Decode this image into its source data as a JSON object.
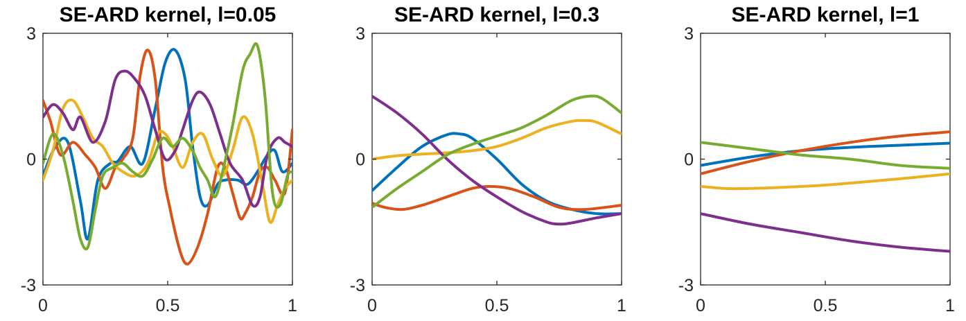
{
  "chart_data": [
    {
      "type": "line",
      "title": "SE-ARD kernel, l=0.05",
      "xlabel": "",
      "ylabel": "",
      "xlim": [
        0,
        1
      ],
      "ylim": [
        -3,
        3
      ],
      "xticks": [
        "0",
        "0.5",
        "1"
      ],
      "yticks": [
        "-3",
        "0",
        "3"
      ],
      "grid": false,
      "series": [
        {
          "color": "#0072BD",
          "x": [
            0,
            0.05,
            0.1,
            0.15,
            0.18,
            0.22,
            0.27,
            0.3,
            0.35,
            0.4,
            0.45,
            0.49,
            0.53,
            0.57,
            0.6,
            0.63,
            0.66,
            0.7,
            0.73,
            0.78,
            0.82,
            0.86,
            0.9,
            0.93,
            0.96,
            1
          ],
          "y": [
            -0.4,
            0.3,
            0.4,
            -1.0,
            -1.9,
            -0.5,
            -0.1,
            -0.05,
            0.3,
            -0.1,
            1.2,
            2.3,
            2.6,
            1.9,
            0.3,
            -0.9,
            -1.1,
            -0.6,
            -0.5,
            -0.5,
            -0.6,
            -0.3,
            0.1,
            0.2,
            -0.3,
            -0.1
          ]
        },
        {
          "color": "#D95319",
          "x": [
            0,
            0.03,
            0.07,
            0.12,
            0.17,
            0.21,
            0.25,
            0.29,
            0.32,
            0.36,
            0.39,
            0.42,
            0.45,
            0.48,
            0.51,
            0.55,
            0.58,
            0.62,
            0.66,
            0.7,
            0.73,
            0.76,
            0.79,
            0.81,
            0.84,
            0.87,
            0.9,
            0.93,
            0.97,
            1
          ],
          "y": [
            1.4,
            0.9,
            0.1,
            0.4,
            0.1,
            -0.2,
            -0.7,
            -0.2,
            0.0,
            0.5,
            2.0,
            2.6,
            1.9,
            -0.2,
            -1.2,
            -2.2,
            -2.5,
            -2.1,
            -1.3,
            -0.2,
            -0.2,
            -0.8,
            -1.4,
            -1.3,
            -0.9,
            -0.3,
            -0.2,
            -0.5,
            -0.8,
            0.7
          ]
        },
        {
          "color": "#EDB120",
          "x": [
            0,
            0.04,
            0.08,
            0.12,
            0.16,
            0.2,
            0.24,
            0.28,
            0.32,
            0.37,
            0.42,
            0.46,
            0.49,
            0.52,
            0.56,
            0.6,
            0.64,
            0.68,
            0.72,
            0.76,
            0.8,
            0.84,
            0.88,
            0.91,
            0.94,
            0.97,
            1
          ],
          "y": [
            -0.5,
            0.2,
            1.2,
            1.4,
            1.0,
            0.5,
            0.3,
            -0.1,
            -0.3,
            -0.4,
            -0.1,
            0.6,
            0.6,
            0.3,
            -0.2,
            0.4,
            0.6,
            0.0,
            -0.4,
            0.2,
            1.0,
            0.6,
            -0.6,
            -1.5,
            -1.1,
            -0.7,
            -0.5
          ]
        },
        {
          "color": "#7E2F8E",
          "x": [
            0,
            0.04,
            0.08,
            0.12,
            0.15,
            0.2,
            0.25,
            0.29,
            0.33,
            0.37,
            0.41,
            0.45,
            0.49,
            0.53,
            0.56,
            0.6,
            0.63,
            0.67,
            0.71,
            0.75,
            0.8,
            0.84,
            0.87,
            0.9,
            0.94,
            0.97,
            1
          ],
          "y": [
            1.0,
            1.3,
            1.1,
            0.7,
            1.0,
            0.4,
            0.9,
            1.9,
            2.1,
            1.9,
            1.5,
            0.7,
            0.0,
            0.2,
            0.7,
            1.4,
            1.6,
            1.3,
            0.6,
            -0.1,
            -0.5,
            -1.1,
            -0.9,
            0.1,
            0.5,
            0.4,
            0.3
          ]
        },
        {
          "color": "#77AC30",
          "x": [
            0,
            0.04,
            0.08,
            0.12,
            0.15,
            0.18,
            0.21,
            0.24,
            0.28,
            0.32,
            0.36,
            0.4,
            0.44,
            0.48,
            0.52,
            0.56,
            0.6,
            0.63,
            0.66,
            0.69,
            0.72,
            0.76,
            0.8,
            0.83,
            0.86,
            0.89,
            0.92,
            0.95,
            0.98,
            1
          ],
          "y": [
            -0.1,
            0.6,
            0.1,
            -1.0,
            -1.9,
            -2.1,
            -1.2,
            -0.4,
            -0.2,
            -0.1,
            -0.3,
            -0.4,
            0.0,
            0.5,
            0.3,
            0.5,
            0.2,
            -0.2,
            -0.5,
            -0.9,
            -0.3,
            0.8,
            2.1,
            2.5,
            2.7,
            1.5,
            -0.8,
            -1.1,
            -0.4,
            -0.3
          ]
        }
      ]
    },
    {
      "type": "line",
      "title": "SE-ARD kernel, l=0.3",
      "xlabel": "",
      "ylabel": "",
      "xlim": [
        0,
        1
      ],
      "ylim": [
        -3,
        3
      ],
      "xticks": [
        "0",
        "0.5",
        "1"
      ],
      "yticks": [
        "-3",
        "0",
        "3"
      ],
      "grid": false,
      "series": [
        {
          "color": "#0072BD",
          "x": [
            0,
            0.1,
            0.2,
            0.3,
            0.35,
            0.4,
            0.5,
            0.6,
            0.7,
            0.8,
            0.9,
            1
          ],
          "y": [
            -0.75,
            -0.2,
            0.3,
            0.58,
            0.6,
            0.5,
            0.0,
            -0.6,
            -1.0,
            -1.2,
            -1.3,
            -1.3
          ]
        },
        {
          "color": "#D95319",
          "x": [
            0,
            0.05,
            0.12,
            0.2,
            0.3,
            0.4,
            0.47,
            0.55,
            0.65,
            0.75,
            0.85,
            1
          ],
          "y": [
            -1.05,
            -1.15,
            -1.2,
            -1.1,
            -0.9,
            -0.7,
            -0.65,
            -0.7,
            -0.9,
            -1.15,
            -1.2,
            -1.1
          ]
        },
        {
          "color": "#EDB120",
          "x": [
            0,
            0.1,
            0.2,
            0.3,
            0.4,
            0.5,
            0.6,
            0.7,
            0.8,
            0.85,
            0.9,
            1
          ],
          "y": [
            0.0,
            0.08,
            0.12,
            0.15,
            0.2,
            0.3,
            0.5,
            0.75,
            0.9,
            0.92,
            0.88,
            0.6
          ]
        },
        {
          "color": "#7E2F8E",
          "x": [
            0,
            0.1,
            0.2,
            0.3,
            0.4,
            0.5,
            0.6,
            0.7,
            0.75,
            0.8,
            0.9,
            1
          ],
          "y": [
            1.5,
            1.1,
            0.6,
            0.0,
            -0.5,
            -0.9,
            -1.25,
            -1.5,
            -1.55,
            -1.52,
            -1.4,
            -1.3
          ]
        },
        {
          "color": "#77AC30",
          "x": [
            0,
            0.1,
            0.2,
            0.3,
            0.4,
            0.5,
            0.6,
            0.7,
            0.8,
            0.87,
            0.92,
            1
          ],
          "y": [
            -1.15,
            -0.7,
            -0.3,
            0.1,
            0.35,
            0.55,
            0.75,
            1.05,
            1.4,
            1.5,
            1.45,
            1.1
          ]
        }
      ]
    },
    {
      "type": "line",
      "title": "SE-ARD kernel, l=1",
      "xlabel": "",
      "ylabel": "",
      "xlim": [
        0,
        1
      ],
      "ylim": [
        -3,
        3
      ],
      "xticks": [
        "0",
        "0.5",
        "1"
      ],
      "yticks": [
        "-3",
        "0",
        "3"
      ],
      "grid": false,
      "series": [
        {
          "color": "#0072BD",
          "x": [
            0,
            0.2,
            0.4,
            0.6,
            0.8,
            1
          ],
          "y": [
            -0.15,
            0.05,
            0.2,
            0.28,
            0.33,
            0.38
          ]
        },
        {
          "color": "#D95319",
          "x": [
            0,
            0.2,
            0.4,
            0.6,
            0.8,
            1
          ],
          "y": [
            -0.35,
            -0.05,
            0.2,
            0.4,
            0.55,
            0.65
          ]
        },
        {
          "color": "#EDB120",
          "x": [
            0,
            0.1,
            0.2,
            0.3,
            0.5,
            0.7,
            0.85,
            1
          ],
          "y": [
            -0.65,
            -0.7,
            -0.7,
            -0.68,
            -0.62,
            -0.52,
            -0.44,
            -0.35
          ]
        },
        {
          "color": "#7E2F8E",
          "x": [
            0,
            0.2,
            0.4,
            0.6,
            0.8,
            1
          ],
          "y": [
            -1.3,
            -1.55,
            -1.75,
            -1.95,
            -2.1,
            -2.2
          ]
        },
        {
          "color": "#77AC30",
          "x": [
            0,
            0.2,
            0.4,
            0.6,
            0.8,
            1
          ],
          "y": [
            0.4,
            0.25,
            0.1,
            0.0,
            -0.15,
            -0.22
          ]
        }
      ]
    }
  ]
}
